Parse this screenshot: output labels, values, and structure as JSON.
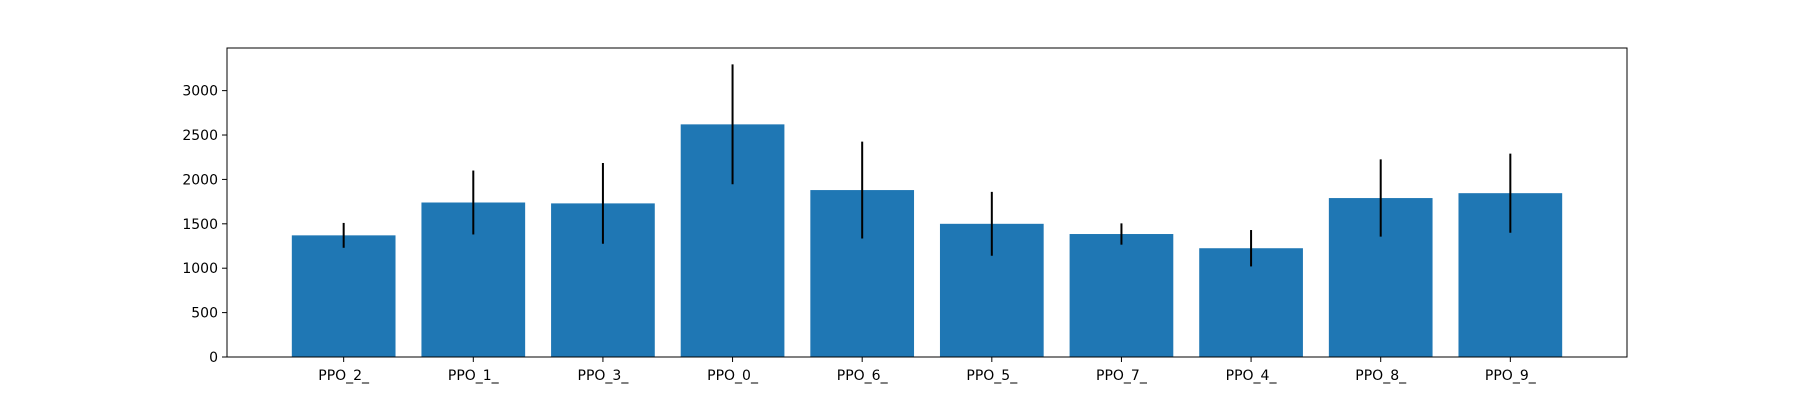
{
  "chart_data": {
    "type": "bar",
    "title": "",
    "xlabel": "",
    "ylabel": "",
    "categories": [
      "PPO_2_",
      "PPO_1_",
      "PPO_3_",
      "PPO_0_",
      "PPO_6_",
      "PPO_5_",
      "PPO_7_",
      "PPO_4_",
      "PPO_8_",
      "PPO_9_"
    ],
    "values": [
      1370,
      1740,
      1730,
      2620,
      1880,
      1500,
      1385,
      1225,
      1790,
      1845
    ],
    "error": [
      140,
      360,
      455,
      675,
      545,
      360,
      120,
      205,
      435,
      445
    ],
    "ylim": [
      0,
      3480
    ],
    "yticks": [
      0,
      500,
      1000,
      1500,
      2000,
      2500,
      3000
    ],
    "grid": false,
    "bar_color": "#1f77b4",
    "error_color": "#000000"
  }
}
